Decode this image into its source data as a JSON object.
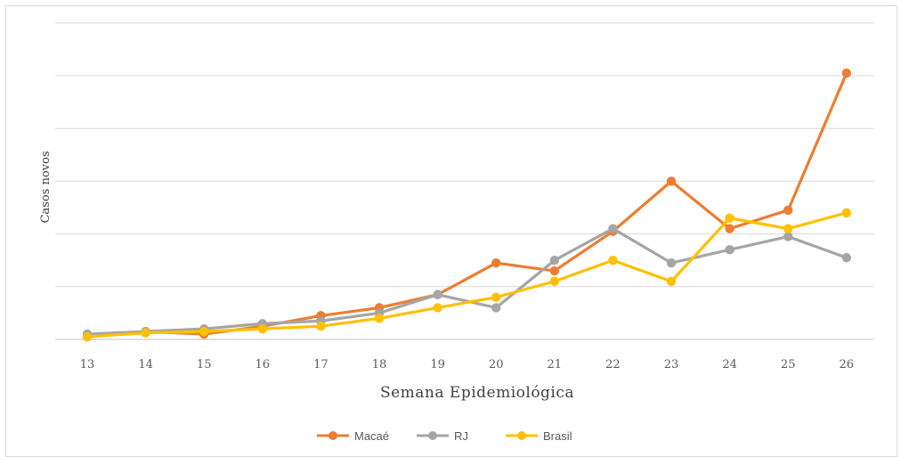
{
  "chart_data": {
    "type": "line",
    "title": "",
    "xlabel": "Semana Epidemiológica",
    "ylabel": "Casos novos",
    "x": [
      13,
      14,
      15,
      16,
      17,
      18,
      19,
      20,
      21,
      22,
      23,
      24,
      25,
      26
    ],
    "ylim": [
      0,
      12
    ],
    "y_tick_labels_shown": false,
    "grid": true,
    "legend_position": "bottom",
    "series": [
      {
        "name": "Macaé",
        "color": "#ED7D31",
        "values": [
          0.1,
          0.3,
          0.2,
          0.5,
          0.9,
          1.2,
          1.7,
          2.9,
          2.6,
          4.1,
          6.0,
          4.2,
          4.9,
          10.1
        ]
      },
      {
        "name": "RJ",
        "color": "#A5A5A5",
        "values": [
          0.2,
          0.3,
          0.4,
          0.6,
          0.7,
          1.0,
          1.7,
          1.2,
          3.0,
          4.2,
          2.9,
          3.4,
          3.9,
          3.1
        ]
      },
      {
        "name": "Brasil",
        "color": "#FFC000",
        "values": [
          0.1,
          0.25,
          0.3,
          0.4,
          0.5,
          0.8,
          1.2,
          1.6,
          2.2,
          3.0,
          2.2,
          4.6,
          4.2,
          4.8
        ]
      }
    ]
  }
}
